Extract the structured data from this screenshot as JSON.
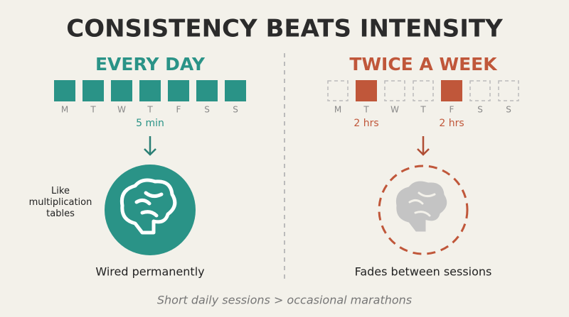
{
  "title": "CONSISTENCY BEATS INTENSITY",
  "left": {
    "heading": "EVERY DAY",
    "days": [
      {
        "label": "M",
        "active": true
      },
      {
        "label": "T",
        "active": true
      },
      {
        "label": "W",
        "active": true
      },
      {
        "label": "T",
        "active": true
      },
      {
        "label": "F",
        "active": true
      },
      {
        "label": "S",
        "active": true
      },
      {
        "label": "S",
        "active": true
      }
    ],
    "note": "5 min",
    "side_note": "Like multiplication tables",
    "caption": "Wired permanently"
  },
  "right": {
    "heading": "TWICE A WEEK",
    "days": [
      {
        "label": "M",
        "active": false
      },
      {
        "label": "T",
        "active": true,
        "note": "2 hrs"
      },
      {
        "label": "W",
        "active": false
      },
      {
        "label": "T",
        "active": false
      },
      {
        "label": "F",
        "active": true,
        "note": "2 hrs"
      },
      {
        "label": "S",
        "active": false
      },
      {
        "label": "S",
        "active": false
      }
    ],
    "caption": "Fades between sessions"
  },
  "footer": "Short daily sessions > occasional marathons"
}
